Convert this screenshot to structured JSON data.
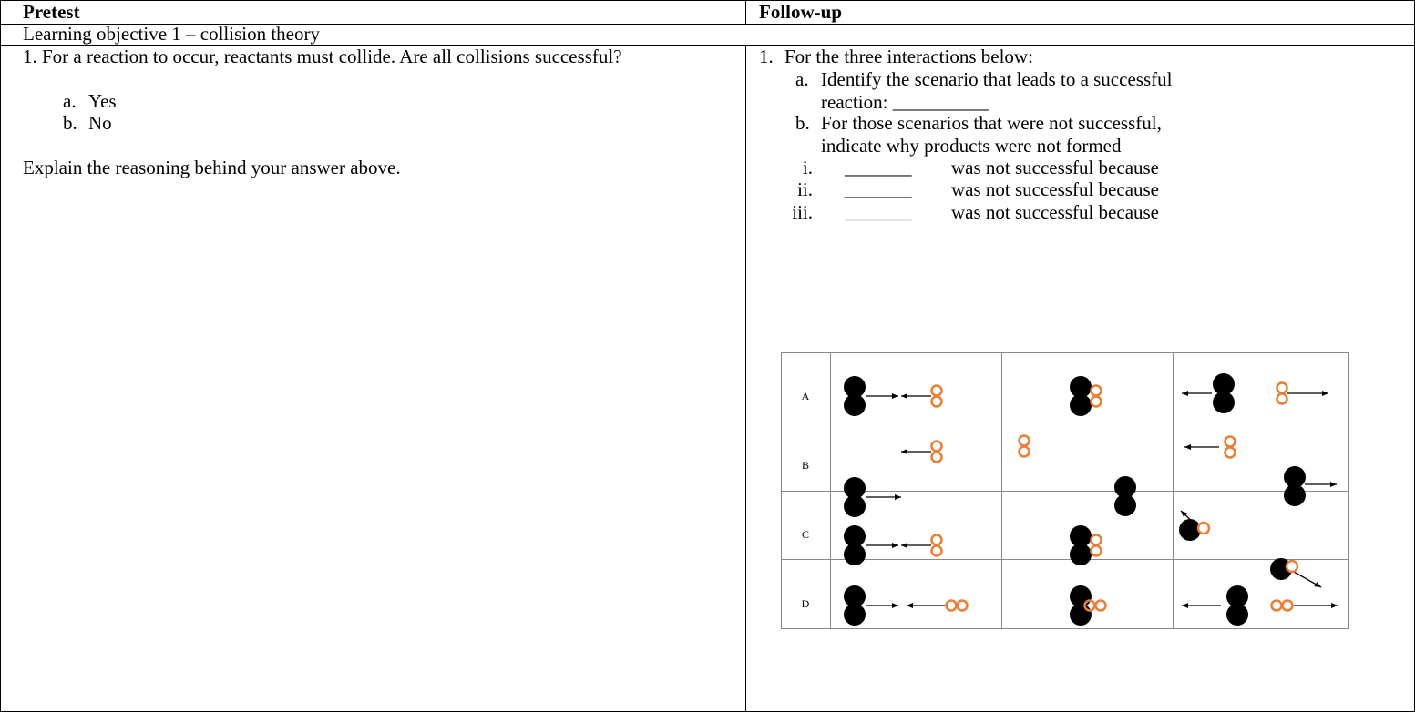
{
  "table": {
    "headers": [
      "Pretest",
      "Follow-up"
    ],
    "section": "Learning objective 1 – collision theory",
    "pretest": {
      "question": "1. For a reaction to occur, reactants must collide. Are all collisions successful?",
      "options": [
        {
          "marker": "a.",
          "text": "Yes"
        },
        {
          "marker": "b.",
          "text": "No"
        }
      ],
      "prompt": "Explain the reasoning behind your answer above."
    },
    "followup": {
      "marker": "1.",
      "question": "For the three interactions below:",
      "parts": [
        {
          "marker": "a.",
          "text": "Identify the scenario that leads to a successful reaction: __________"
        },
        {
          "marker": "b.",
          "text": "For those scenarios that were not successful, indicate why products were not formed"
        }
      ],
      "items": [
        {
          "marker": "i.",
          "blank": "_______",
          "text": "was not successful because"
        },
        {
          "marker": "ii.",
          "blank": "_______",
          "text": "was not successful because"
        },
        {
          "marker": "iii.",
          "blank": "_______",
          "text": "was not successful because"
        }
      ],
      "grid_rows": [
        "A",
        "B",
        "C",
        "D"
      ]
    }
  }
}
